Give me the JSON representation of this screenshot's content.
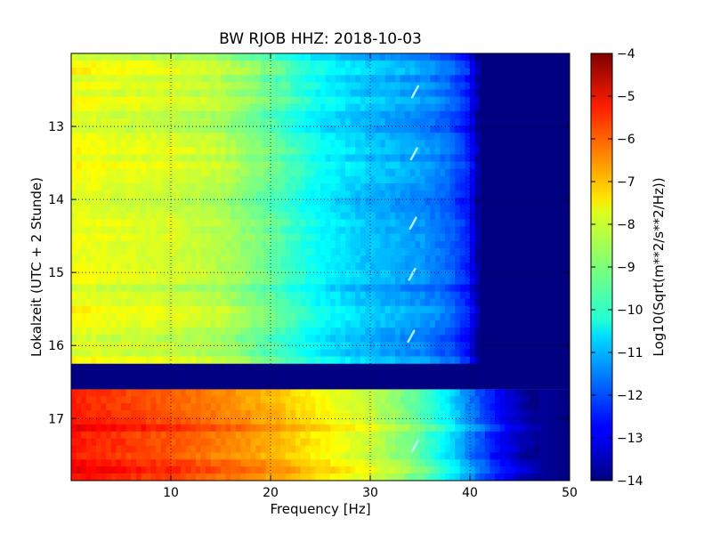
{
  "chart_data": {
    "type": "heatmap",
    "title": "BW RJOB HHZ: 2018-10-03",
    "xlabel": "Frequency [Hz]",
    "ylabel": "Lokalzeit (UTC + 2 Stunde)",
    "colorbar_label": "Log10(Sqrt(m**2/s**2/Hz))",
    "xlim": [
      0,
      50
    ],
    "ylim": [
      17.85,
      12.0
    ],
    "x_ticks": [
      10,
      20,
      30,
      40,
      50
    ],
    "y_ticks": [
      13,
      14,
      15,
      16,
      17
    ],
    "colorbar_range": [
      -14,
      -4
    ],
    "colorbar_ticks": [
      -4,
      -5,
      -6,
      -7,
      -8,
      -9,
      -10,
      -11,
      -12,
      -13,
      -14
    ],
    "colormap": "jet",
    "grid": true,
    "gap_interval": [
      16.25,
      16.6
    ],
    "cutoff_frequency_hz": 40,
    "lower_cutoff_frequency_hz": 46,
    "x_tick_labels": [
      "10",
      "20",
      "30",
      "40",
      "50"
    ],
    "y_tick_labels": [
      "13",
      "14",
      "15",
      "16",
      "17"
    ],
    "colorbar_tick_labels": [
      "−4",
      "−5",
      "−6",
      "−7",
      "−8",
      "−9",
      "−10",
      "−11",
      "−12",
      "−13",
      "−14"
    ],
    "upper_profile": [
      {
        "f": 0,
        "v": -7.9
      },
      {
        "f": 5,
        "v": -8.1
      },
      {
        "f": 10,
        "v": -8.2
      },
      {
        "f": 15,
        "v": -8.5
      },
      {
        "f": 20,
        "v": -9.3
      },
      {
        "f": 25,
        "v": -10.3
      },
      {
        "f": 30,
        "v": -10.9
      },
      {
        "f": 35,
        "v": -11.3
      },
      {
        "f": 38,
        "v": -11.8
      },
      {
        "f": 40,
        "v": -12.6
      },
      {
        "f": 41,
        "v": -14
      },
      {
        "f": 50,
        "v": -14
      }
    ],
    "lower_profile": [
      {
        "f": 0,
        "v": -5.3
      },
      {
        "f": 5,
        "v": -5.6
      },
      {
        "f": 10,
        "v": -5.9
      },
      {
        "f": 15,
        "v": -6.3
      },
      {
        "f": 20,
        "v": -6.8
      },
      {
        "f": 25,
        "v": -7.5
      },
      {
        "f": 30,
        "v": -8.1
      },
      {
        "f": 35,
        "v": -9.2
      },
      {
        "f": 38,
        "v": -10.3
      },
      {
        "f": 40,
        "v": -11.3
      },
      {
        "f": 43,
        "v": -12.6
      },
      {
        "f": 46,
        "v": -13.6
      },
      {
        "f": 50,
        "v": -14
      }
    ],
    "spectral_lines": [
      {
        "t_start": 12.45,
        "t_end": 12.6,
        "f_start": 34.2,
        "f_end": 34.8
      },
      {
        "t_start": 13.3,
        "t_end": 13.45,
        "f_start": 34.1,
        "f_end": 34.7
      },
      {
        "t_start": 14.25,
        "t_end": 14.4,
        "f_start": 34.0,
        "f_end": 34.6
      },
      {
        "t_start": 14.95,
        "t_end": 15.1,
        "f_start": 33.9,
        "f_end": 34.5
      },
      {
        "t_start": 15.8,
        "t_end": 15.95,
        "f_start": 33.8,
        "f_end": 34.4
      },
      {
        "t_start": 17.3,
        "t_end": 17.45,
        "f_start": 34.2,
        "f_end": 34.8
      }
    ]
  }
}
